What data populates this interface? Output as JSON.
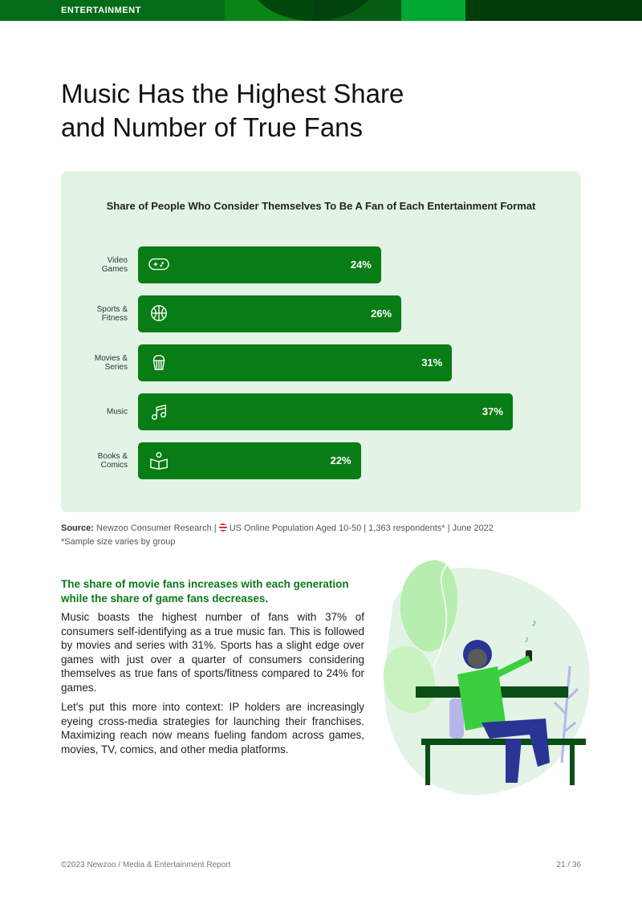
{
  "header": {
    "section": "ENTERTAINMENT",
    "colors": [
      "#046c18",
      "#0a8a1a",
      "#00a831",
      "#003d0a"
    ]
  },
  "title_line1": "Music Has the Highest Share",
  "title_line2": "and Number of True Fans",
  "chart_data": {
    "type": "bar",
    "orientation": "horizontal",
    "title": "Share of People Who Consider Themselves To Be A Fan of Each Entertainment Format",
    "categories": [
      "Video Games",
      "Sports & Fitness",
      "Movies & Series",
      "Music",
      "Books & Comics"
    ],
    "category_lines": [
      [
        "Video",
        "Games"
      ],
      [
        "Sports &",
        "Fitness"
      ],
      [
        "Movies &",
        "Series"
      ],
      [
        "Music"
      ],
      [
        "Books &",
        "Comics"
      ]
    ],
    "icons": [
      "gamepad-icon",
      "basketball-icon",
      "popcorn-icon",
      "music-note-icon",
      "reading-book-icon"
    ],
    "values": [
      24,
      26,
      31,
      37,
      22
    ],
    "labels": [
      "24%",
      "26%",
      "31%",
      "37%",
      "22%"
    ],
    "unit": "%",
    "bar_color": "#097d15",
    "grid": false
  },
  "source": {
    "label": "Source:",
    "text": "Newzoo Consumer Research | ",
    "flag": "us-flag-icon",
    "text2": "US Online Population Aged 10-50 | 1,363 respondents* | June 2022"
  },
  "note": "*Sample size varies by group",
  "lead": "The share of movie fans increases with each generation while the share of game fans decreases.",
  "para1": "Music boasts the highest number of fans with 37% of consumers self-identifying as a true music fan. This is followed by movies and series with 31%. Sports has a slight edge over games with just over a quarter of consumers considering themselves as true fans of sports/fitness compared to 24% for games.",
  "para2": "Let's put this more into context: IP holders are increasingly eyeing cross-media strategies for launching their franchises. Maximizing reach now means fueling fandom across games, movies, TV, comics, and other media platforms.",
  "footer": {
    "left": "©2023 Newzoo / Media & Entertainment Report",
    "right": "21 / 36"
  }
}
